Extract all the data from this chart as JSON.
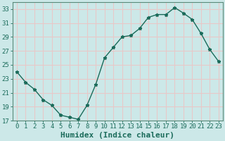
{
  "x": [
    0,
    1,
    2,
    3,
    4,
    5,
    6,
    7,
    8,
    9,
    10,
    11,
    12,
    13,
    14,
    15,
    16,
    17,
    18,
    19,
    20,
    21,
    22,
    23
  ],
  "y": [
    24.0,
    22.5,
    21.5,
    20.0,
    19.2,
    17.8,
    17.5,
    17.2,
    19.2,
    22.2,
    26.0,
    27.5,
    29.0,
    29.2,
    30.2,
    31.8,
    32.2,
    32.2,
    33.2,
    32.4,
    31.5,
    29.5,
    27.2,
    25.5
  ],
  "line_color": "#1a6b5a",
  "marker": "*",
  "marker_size": 3.5,
  "bg_color": "#cce8e8",
  "grid_color": "#e8c8c8",
  "tick_color": "#1a6b5a",
  "xlabel": "Humidex (Indice chaleur)",
  "xlabel_fontsize": 8,
  "ylim": [
    17,
    34
  ],
  "xlim": [
    -0.5,
    23.5
  ],
  "yticks": [
    17,
    19,
    21,
    23,
    25,
    27,
    29,
    31,
    33
  ],
  "xticks": [
    0,
    1,
    2,
    3,
    4,
    5,
    6,
    7,
    8,
    9,
    10,
    11,
    12,
    13,
    14,
    15,
    16,
    17,
    18,
    19,
    20,
    21,
    22,
    23
  ],
  "tick_fontsize": 6.5,
  "spine_color": "#5a8a7a"
}
